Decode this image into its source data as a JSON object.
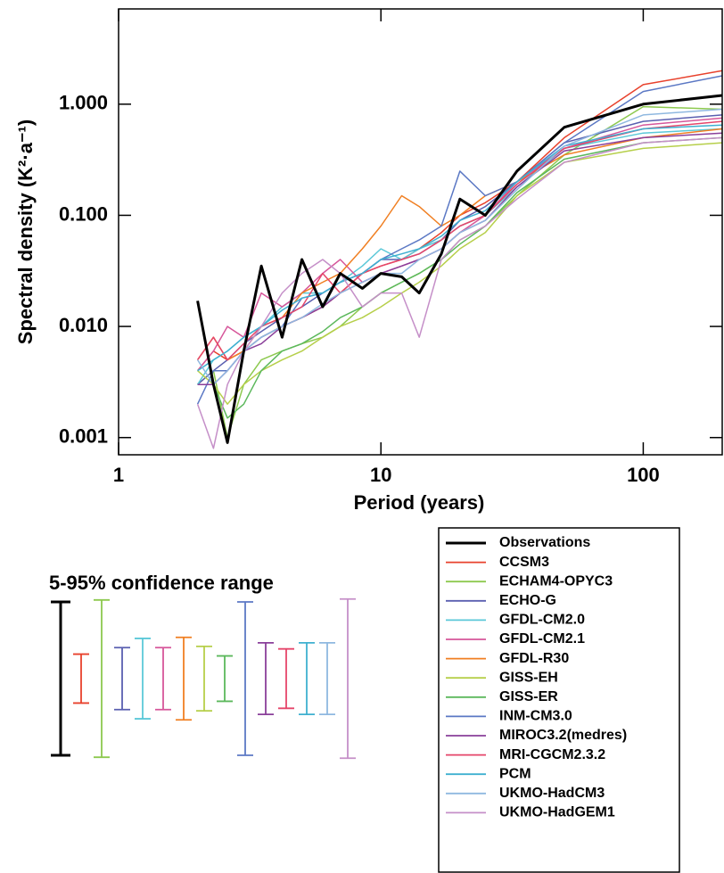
{
  "chart_data": {
    "type": "line",
    "log_x": true,
    "log_y": true,
    "x_label": "Period (years)",
    "y_label": "Spectral density (K²·a⁻¹)",
    "xlim": [
      1,
      200
    ],
    "ylim": [
      0.0007,
      7.2
    ],
    "xticks": [
      1,
      10,
      100
    ],
    "yticks": [
      {
        "value": 1,
        "label": "1.000"
      },
      {
        "value": 0.1,
        "label": "0.100"
      },
      {
        "value": 0.01,
        "label": "0.010"
      },
      {
        "value": 0.001,
        "label": "0.001"
      }
    ],
    "ci_title": "5-95% confidence range",
    "x": [
      200,
      100,
      50,
      33,
      25,
      20,
      17,
      14,
      12,
      10,
      8.5,
      7,
      6,
      5,
      4.2,
      3.5,
      3,
      2.6,
      2.3,
      2.0
    ],
    "series": [
      {
        "name": "Observations",
        "color": "#000000",
        "ci_factor": 4.9,
        "values": [
          1.2,
          1.0,
          0.62,
          0.25,
          0.1,
          0.14,
          0.045,
          0.02,
          0.028,
          0.03,
          0.022,
          0.03,
          0.015,
          0.04,
          0.008,
          0.035,
          0.006,
          0.0009,
          0.003,
          0.017
        ]
      },
      {
        "name": "CCSM3",
        "color": "#e8412c",
        "ci_factor": 1.66,
        "values": [
          2.0,
          1.5,
          0.5,
          0.2,
          0.13,
          0.1,
          0.07,
          0.05,
          0.04,
          0.035,
          0.03,
          0.02,
          0.015,
          0.012,
          0.01,
          0.008,
          0.006,
          0.005,
          0.006,
          0.004
        ]
      },
      {
        "name": "ECHAM4-OPYC3",
        "color": "#8dc94f",
        "ci_factor": 5.1,
        "values": [
          0.9,
          0.95,
          0.35,
          0.15,
          0.08,
          0.06,
          0.04,
          0.03,
          0.025,
          0.02,
          0.015,
          0.01,
          0.008,
          0.007,
          0.006,
          0.005,
          0.003,
          0.001,
          0.004,
          0.003
        ]
      },
      {
        "name": "ECHO-G",
        "color": "#5a5fb0",
        "ci_factor": 1.9,
        "values": [
          0.8,
          0.7,
          0.45,
          0.2,
          0.12,
          0.09,
          0.06,
          0.045,
          0.04,
          0.04,
          0.03,
          0.025,
          0.02,
          0.015,
          0.012,
          0.009,
          0.007,
          0.005,
          0.004,
          0.003
        ]
      },
      {
        "name": "GFDL-CM2.0",
        "color": "#5bc8d8",
        "ci_factor": 2.3,
        "values": [
          0.6,
          0.55,
          0.4,
          0.18,
          0.1,
          0.08,
          0.06,
          0.05,
          0.04,
          0.05,
          0.035,
          0.025,
          0.02,
          0.02,
          0.015,
          0.01,
          0.008,
          0.006,
          0.005,
          0.003
        ]
      },
      {
        "name": "GFDL-CM2.1",
        "color": "#d6569a",
        "ci_factor": 1.9,
        "values": [
          0.75,
          0.65,
          0.4,
          0.2,
          0.1,
          0.07,
          0.05,
          0.04,
          0.035,
          0.03,
          0.025,
          0.04,
          0.03,
          0.02,
          0.015,
          0.02,
          0.008,
          0.01,
          0.006,
          0.004
        ]
      },
      {
        "name": "GFDL-R30",
        "color": "#f07f22",
        "ci_factor": 2.35,
        "values": [
          0.6,
          0.5,
          0.35,
          0.2,
          0.15,
          0.1,
          0.08,
          0.12,
          0.15,
          0.08,
          0.05,
          0.03,
          0.025,
          0.02,
          0.012,
          0.01,
          0.006,
          0.005,
          0.008,
          0.005
        ]
      },
      {
        "name": "GISS-EH",
        "color": "#b6cf4a",
        "ci_factor": 1.95,
        "values": [
          0.45,
          0.4,
          0.3,
          0.15,
          0.07,
          0.05,
          0.035,
          0.025,
          0.02,
          0.015,
          0.012,
          0.01,
          0.008,
          0.006,
          0.005,
          0.004,
          0.003,
          0.002,
          0.003,
          0.004
        ]
      },
      {
        "name": "GISS-ER",
        "color": "#5cb85c",
        "ci_factor": 1.6,
        "values": [
          0.5,
          0.45,
          0.32,
          0.16,
          0.08,
          0.055,
          0.04,
          0.03,
          0.025,
          0.02,
          0.015,
          0.012,
          0.009,
          0.007,
          0.006,
          0.004,
          0.002,
          0.0015,
          0.003,
          0.003
        ]
      },
      {
        "name": "INM-CM3.0",
        "color": "#5b78c4",
        "ci_factor": 4.9,
        "values": [
          1.8,
          1.3,
          0.45,
          0.2,
          0.15,
          0.25,
          0.08,
          0.06,
          0.05,
          0.04,
          0.03,
          0.025,
          0.02,
          0.018,
          0.01,
          0.008,
          0.006,
          0.004,
          0.004,
          0.002
        ]
      },
      {
        "name": "MIROC3.2(medres)",
        "color": "#8a3f9a",
        "ci_factor": 2.1,
        "values": [
          0.55,
          0.5,
          0.38,
          0.18,
          0.09,
          0.07,
          0.05,
          0.04,
          0.035,
          0.03,
          0.025,
          0.02,
          0.015,
          0.012,
          0.01,
          0.007,
          0.006,
          0.004,
          0.003,
          0.003
        ]
      },
      {
        "name": "MRI-CGCM2.3.2",
        "color": "#e5466a",
        "ci_factor": 1.85,
        "values": [
          0.7,
          0.6,
          0.4,
          0.19,
          0.1,
          0.08,
          0.06,
          0.045,
          0.04,
          0.035,
          0.03,
          0.02,
          0.03,
          0.015,
          0.012,
          0.01,
          0.007,
          0.005,
          0.008,
          0.005
        ]
      },
      {
        "name": "PCM",
        "color": "#3fb0d0",
        "ci_factor": 2.1,
        "values": [
          0.65,
          0.6,
          0.42,
          0.2,
          0.11,
          0.09,
          0.065,
          0.05,
          0.045,
          0.04,
          0.03,
          0.025,
          0.02,
          0.018,
          0.014,
          0.01,
          0.008,
          0.006,
          0.005,
          0.004
        ]
      },
      {
        "name": "UKMO-HadCM3",
        "color": "#8fb8e0",
        "ci_factor": 2.1,
        "values": [
          0.9,
          0.8,
          0.42,
          0.17,
          0.09,
          0.07,
          0.05,
          0.04,
          0.03,
          0.03,
          0.025,
          0.02,
          0.016,
          0.012,
          0.01,
          0.008,
          0.006,
          0.004,
          0.003,
          0.005
        ]
      },
      {
        "name": "UKMO-HadGEM1",
        "color": "#c58fc8",
        "ci_factor": 5.2,
        "values": [
          0.5,
          0.45,
          0.3,
          0.14,
          0.08,
          0.06,
          0.04,
          0.008,
          0.02,
          0.02,
          0.015,
          0.03,
          0.04,
          0.03,
          0.02,
          0.01,
          0.006,
          0.003,
          0.0008,
          0.002
        ]
      }
    ]
  }
}
